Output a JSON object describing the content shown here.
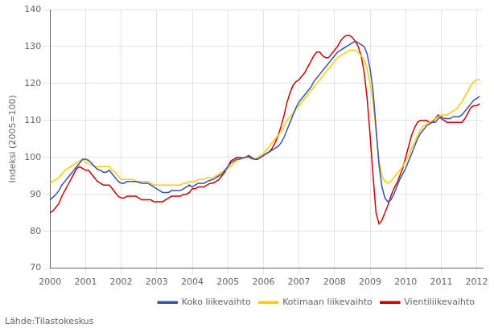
{
  "chart_data": {
    "type": "line",
    "ylabel": "Indeksi (2005=100)",
    "annotations": [
      "Lähde:Tilastokeskus"
    ],
    "xlim": [
      2000.0,
      2012.167
    ],
    "xticks": [
      2000,
      2001,
      2002,
      2003,
      2004,
      2005,
      2006,
      2007,
      2008,
      2009,
      2010,
      2011,
      2012
    ],
    "ylim": [
      70,
      140
    ],
    "yticks": [
      70,
      80,
      90,
      100,
      110,
      120,
      130,
      140
    ],
    "grid": true,
    "legend": "lower right",
    "x": [
      2000,
      2000.0833,
      2000.1667,
      2000.25,
      2000.3333,
      2000.4167,
      2000.5,
      2000.5833,
      2000.6667,
      2000.75,
      2000.8333,
      2000.9167,
      2001,
      2001.0833,
      2001.1667,
      2001.25,
      2001.3333,
      2001.4167,
      2001.5,
      2001.5833,
      2001.6667,
      2001.75,
      2001.8333,
      2001.9167,
      2002,
      2002.0833,
      2002.1667,
      2002.25,
      2002.3333,
      2002.4167,
      2002.5,
      2002.5833,
      2002.6667,
      2002.75,
      2002.8333,
      2002.9167,
      2003,
      2003.0833,
      2003.1667,
      2003.25,
      2003.3333,
      2003.4167,
      2003.5,
      2003.5833,
      2003.6667,
      2003.75,
      2003.8333,
      2003.9167,
      2004,
      2004.0833,
      2004.1667,
      2004.25,
      2004.3333,
      2004.4167,
      2004.5,
      2004.5833,
      2004.6667,
      2004.75,
      2004.8333,
      2004.9167,
      2005,
      2005.0833,
      2005.1667,
      2005.25,
      2005.3333,
      2005.4167,
      2005.5,
      2005.5833,
      2005.6667,
      2005.75,
      2005.8333,
      2005.9167,
      2006,
      2006.0833,
      2006.1667,
      2006.25,
      2006.3333,
      2006.4167,
      2006.5,
      2006.5833,
      2006.6667,
      2006.75,
      2006.8333,
      2006.9167,
      2007,
      2007.0833,
      2007.1667,
      2007.25,
      2007.3333,
      2007.4167,
      2007.5,
      2007.5833,
      2007.6667,
      2007.75,
      2007.8333,
      2007.9167,
      2008,
      2008.0833,
      2008.1667,
      2008.25,
      2008.3333,
      2008.4167,
      2008.5,
      2008.5833,
      2008.6667,
      2008.75,
      2008.8333,
      2008.9167,
      2009,
      2009.0833,
      2009.1667,
      2009.25,
      2009.3333,
      2009.4167,
      2009.5,
      2009.5833,
      2009.6667,
      2009.75,
      2009.8333,
      2009.9167,
      2010,
      2010.0833,
      2010.1667,
      2010.25,
      2010.3333,
      2010.4167,
      2010.5,
      2010.5833,
      2010.6667,
      2010.75,
      2010.8333,
      2010.9167,
      2011,
      2011.0833,
      2011.1667,
      2011.25,
      2011.3333,
      2011.4167,
      2011.5,
      2011.5833,
      2011.6667,
      2011.75,
      2011.8333,
      2011.9167,
      2012,
      2012.0833
    ],
    "series": [
      {
        "name": "Koko liikevaihto",
        "color": "#3355aa",
        "values": [
          88.5,
          89.2,
          90.0,
          91.0,
          92.5,
          93.5,
          94.5,
          95.5,
          96.5,
          97.5,
          98.5,
          99.5,
          99.5,
          99.2,
          98.5,
          97.5,
          96.8,
          96.5,
          96.0,
          96.0,
          96.5,
          95.5,
          94.5,
          93.5,
          93.0,
          93.0,
          93.5,
          93.5,
          93.5,
          93.5,
          93.2,
          93.0,
          93.0,
          93.0,
          92.5,
          92.0,
          91.5,
          91.0,
          90.5,
          90.5,
          90.5,
          91.0,
          91.0,
          91.0,
          91.0,
          91.5,
          92.0,
          92.5,
          92.0,
          92.5,
          93.0,
          93.0,
          93.0,
          93.5,
          93.8,
          94.0,
          94.5,
          95.0,
          95.5,
          96.5,
          97.5,
          98.5,
          99.0,
          99.5,
          99.5,
          99.8,
          100.0,
          100.2,
          99.8,
          99.5,
          99.5,
          100.0,
          100.5,
          101.0,
          101.5,
          102.0,
          102.5,
          103.0,
          104.0,
          105.5,
          107.5,
          109.5,
          111.5,
          113.5,
          115.0,
          116.0,
          117.0,
          118.0,
          119.0,
          120.5,
          121.5,
          122.5,
          123.5,
          124.5,
          125.5,
          126.5,
          127.5,
          128.5,
          129.0,
          129.5,
          130.0,
          130.5,
          131.0,
          131.5,
          131.0,
          130.5,
          130.0,
          128.0,
          124.0,
          118.0,
          108.0,
          98.0,
          92.0,
          89.0,
          88.0,
          88.5,
          90.0,
          92.0,
          94.0,
          95.5,
          97.0,
          99.0,
          101.0,
          103.0,
          105.0,
          106.5,
          107.5,
          108.5,
          109.0,
          109.5,
          109.5,
          110.5,
          111.0,
          110.5,
          110.5,
          110.5,
          111.0,
          111.0,
          111.0,
          111.5,
          112.5,
          113.5,
          114.5,
          115.5,
          116.0,
          116.5
        ]
      },
      {
        "name": "Kotimaan liikevaihto",
        "color": "#ffcc00",
        "values": [
          93.0,
          93.5,
          94.0,
          94.5,
          95.5,
          96.5,
          97.0,
          97.5,
          98.0,
          98.5,
          99.0,
          99.5,
          98.5,
          98.5,
          98.0,
          97.5,
          97.5,
          97.5,
          97.5,
          97.5,
          97.5,
          96.5,
          96.0,
          95.0,
          94.0,
          94.0,
          94.0,
          94.0,
          94.0,
          93.5,
          93.5,
          93.5,
          93.5,
          93.5,
          93.0,
          92.5,
          92.5,
          92.5,
          92.5,
          92.5,
          92.5,
          92.5,
          92.5,
          92.5,
          92.5,
          93.0,
          93.0,
          93.5,
          93.5,
          93.5,
          94.0,
          94.0,
          94.0,
          94.5,
          94.5,
          94.5,
          95.0,
          95.5,
          96.0,
          96.5,
          97.0,
          97.5,
          98.5,
          99.0,
          99.5,
          100.0,
          100.0,
          100.0,
          99.5,
          99.5,
          100.0,
          100.5,
          101.0,
          102.0,
          103.0,
          104.0,
          105.0,
          106.0,
          107.0,
          108.5,
          110.0,
          111.0,
          112.0,
          113.0,
          114.0,
          115.0,
          116.0,
          117.0,
          118.0,
          119.0,
          120.0,
          121.0,
          122.0,
          123.0,
          124.0,
          125.0,
          126.0,
          127.0,
          127.5,
          128.0,
          128.5,
          129.0,
          129.0,
          129.0,
          128.5,
          127.5,
          126.5,
          124.0,
          120.0,
          115.0,
          107.0,
          99.0,
          95.0,
          93.5,
          93.0,
          93.5,
          94.5,
          95.5,
          96.5,
          97.5,
          99.0,
          100.5,
          102.5,
          104.0,
          106.0,
          107.5,
          108.5,
          109.0,
          109.5,
          110.0,
          110.5,
          111.0,
          111.5,
          111.5,
          111.5,
          112.0,
          112.5,
          113.0,
          114.0,
          115.0,
          116.5,
          118.0,
          119.5,
          120.5,
          121.0,
          121.0
        ]
      },
      {
        "name": "Vientiliikevaihto",
        "color": "#cc0000",
        "values": [
          85.0,
          85.5,
          86.5,
          87.5,
          89.5,
          91.0,
          92.5,
          94.0,
          95.5,
          97.0,
          97.5,
          97.0,
          96.5,
          96.5,
          95.5,
          94.5,
          93.5,
          93.0,
          92.5,
          92.5,
          92.5,
          91.5,
          90.5,
          89.5,
          89.0,
          89.0,
          89.5,
          89.5,
          89.5,
          89.5,
          89.0,
          88.5,
          88.5,
          88.5,
          88.5,
          88.0,
          88.0,
          88.0,
          88.0,
          88.5,
          89.0,
          89.5,
          89.5,
          89.5,
          89.5,
          90.0,
          90.0,
          90.5,
          91.5,
          91.5,
          92.0,
          92.0,
          92.0,
          92.5,
          93.0,
          93.0,
          93.5,
          94.0,
          95.0,
          96.0,
          97.5,
          99.0,
          99.5,
          100.0,
          100.0,
          100.0,
          100.0,
          100.5,
          100.0,
          99.5,
          99.5,
          100.0,
          100.5,
          101.0,
          101.5,
          102.5,
          104.0,
          106.0,
          108.5,
          111.5,
          115.0,
          117.5,
          119.5,
          120.5,
          121.0,
          122.0,
          123.0,
          124.5,
          126.0,
          127.5,
          128.5,
          128.5,
          127.5,
          127.0,
          127.0,
          128.0,
          129.0,
          130.0,
          131.5,
          132.5,
          133.0,
          133.0,
          132.5,
          131.5,
          130.0,
          127.5,
          123.0,
          116.0,
          106.0,
          95.0,
          85.0,
          82.0,
          83.0,
          85.0,
          87.0,
          89.5,
          91.5,
          93.0,
          95.0,
          97.0,
          100.0,
          103.0,
          106.0,
          108.0,
          109.5,
          110.0,
          110.0,
          110.0,
          109.5,
          109.5,
          110.5,
          111.5,
          110.5,
          110.0,
          109.5,
          109.5,
          109.5,
          109.5,
          109.5,
          109.5,
          110.5,
          112.0,
          113.5,
          114.0,
          114.0,
          114.5
        ]
      }
    ]
  }
}
